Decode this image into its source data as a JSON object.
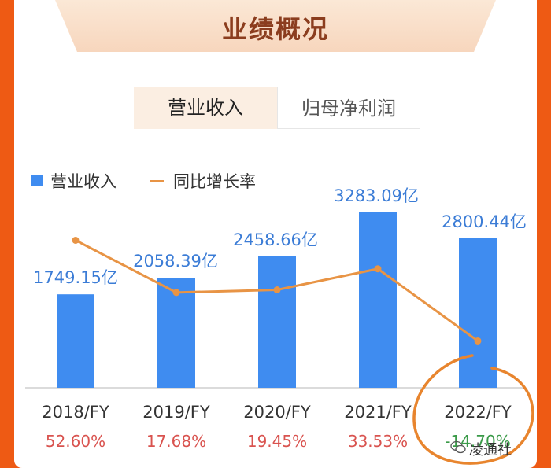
{
  "title": "业绩概况",
  "tabs": [
    {
      "label": "营业收入",
      "active": true
    },
    {
      "label": "归母净利润",
      "active": false
    }
  ],
  "legend": {
    "bar_label": "营业收入",
    "line_label": "同比增长率"
  },
  "watermark": "凌通社",
  "colors": {
    "bar": "#3f8cf0",
    "line": "#e89445",
    "positive_growth": "#d9534f",
    "negative_growth": "#3a9a48",
    "annotation_circle": "#e8852e"
  },
  "chart_data": {
    "type": "bar",
    "categories": [
      "2018/FY",
      "2019/FY",
      "2020/FY",
      "2021/FY",
      "2022/FY"
    ],
    "series": [
      {
        "name": "营业收入",
        "type": "bar",
        "values": [
          1749.15,
          2058.39,
          2458.66,
          3283.09,
          2800.44
        ],
        "labels": [
          "1749.15亿",
          "2058.39亿",
          "2458.66亿",
          "3283.09亿",
          "2800.44亿"
        ]
      },
      {
        "name": "同比增长率",
        "type": "line",
        "values": [
          52.6,
          17.68,
          19.45,
          33.53,
          -14.7
        ],
        "labels": [
          "52.60%",
          "17.68%",
          "19.45%",
          "33.53%",
          "-14.70%"
        ]
      }
    ]
  }
}
